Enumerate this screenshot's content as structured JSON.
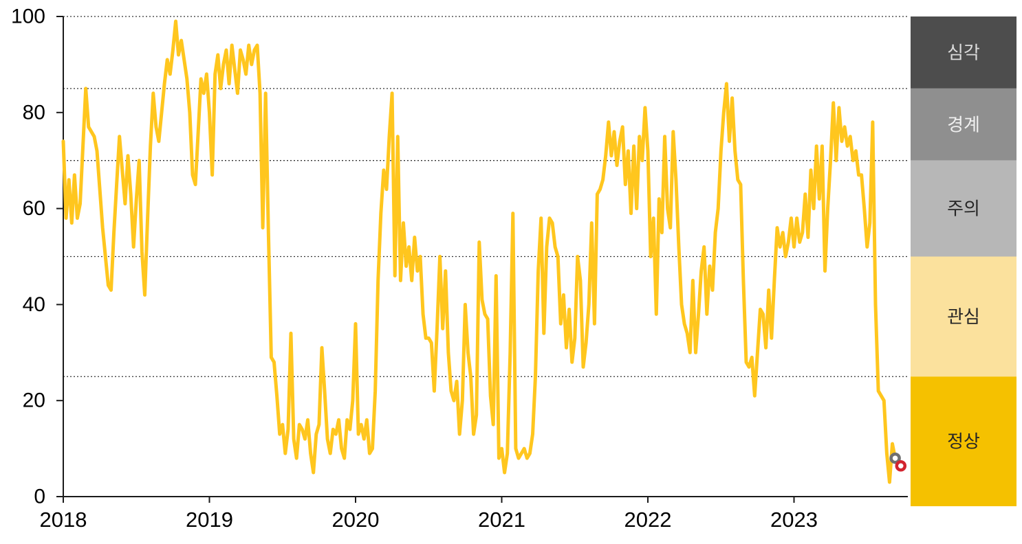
{
  "chart_data": {
    "type": "line",
    "title": "",
    "xlabel": "",
    "ylabel": "",
    "ylim": [
      0,
      100
    ],
    "y_ticks": [
      0,
      20,
      40,
      60,
      80,
      100
    ],
    "x_tick_labels": [
      "2018",
      "2019",
      "2020",
      "2021",
      "2022",
      "2023"
    ],
    "gridlines": [
      25,
      50,
      70,
      85,
      100
    ],
    "grid_style": "dotted",
    "legend_position": "right-band",
    "start_year": 2018,
    "points_per_year": 52,
    "series": [
      {
        "name": "stress-index",
        "color": "#FFC61E",
        "weekly_values": [
          74,
          58,
          66,
          57,
          67,
          58,
          61,
          73,
          85,
          77,
          76,
          75,
          72,
          64,
          56,
          50,
          44,
          43,
          55,
          65,
          75,
          68,
          61,
          71,
          63,
          52,
          62,
          70,
          51,
          42,
          58,
          73,
          84,
          77,
          74,
          80,
          86,
          91,
          88,
          93,
          99,
          92,
          95,
          91,
          87,
          80,
          67,
          65,
          76,
          87,
          84,
          88,
          80,
          67,
          88,
          92,
          85,
          90,
          93,
          86,
          94,
          89,
          84,
          93,
          91,
          88,
          94,
          90,
          93,
          94,
          84,
          56,
          84,
          55,
          29,
          28,
          21,
          13,
          15,
          9,
          14,
          34,
          12,
          8,
          15,
          14,
          12,
          16,
          9,
          5,
          13,
          15,
          31,
          22,
          12,
          9,
          14,
          13,
          16,
          10,
          8,
          16,
          14,
          20,
          36,
          13,
          15,
          12,
          16,
          9,
          10,
          22,
          45,
          59,
          68,
          64,
          75,
          84,
          46,
          75,
          45,
          57,
          48,
          52,
          45,
          54,
          47,
          50,
          38,
          33,
          33,
          32,
          22,
          35,
          50,
          35,
          47,
          30,
          22,
          20,
          24,
          13,
          20,
          40,
          30,
          25,
          13,
          17,
          53,
          41,
          38,
          37,
          21,
          15,
          46,
          8,
          10,
          5,
          9,
          30,
          59,
          10,
          8,
          9,
          10,
          8,
          9,
          13,
          25,
          47,
          58,
          34,
          52,
          58,
          57,
          52,
          50,
          36,
          42,
          31,
          39,
          28,
          33,
          50,
          45,
          27,
          32,
          40,
          57,
          36,
          63,
          64,
          66,
          71,
          78,
          71,
          76,
          69,
          74,
          77,
          65,
          72,
          59,
          73,
          60,
          75,
          70,
          81,
          72,
          50,
          58,
          38,
          62,
          55,
          75,
          60,
          56,
          76,
          66,
          52,
          40,
          36,
          34,
          30,
          45,
          30,
          38,
          47,
          52,
          38,
          48,
          43,
          55,
          60,
          72,
          80,
          86,
          74,
          83,
          72,
          66,
          65,
          45,
          28,
          27,
          29,
          21,
          30,
          39,
          38,
          31,
          43,
          33,
          45,
          56,
          52,
          55,
          50,
          53,
          58,
          52,
          58,
          53,
          55,
          63,
          54,
          68,
          60,
          73,
          62,
          73,
          47,
          60,
          70,
          82,
          70,
          81,
          74,
          77,
          73,
          75,
          70,
          72,
          67,
          67,
          60,
          52,
          57,
          78,
          40,
          22,
          21,
          20,
          9,
          3,
          11,
          8
        ]
      }
    ],
    "end_markers": [
      {
        "name": "latest-point-gray",
        "value": 8,
        "offset_weeks": 0,
        "ring_color": "#6F6F6F"
      },
      {
        "name": "latest-point-red",
        "value": 6.4,
        "offset_weeks": 2,
        "ring_color": "#D2232E"
      }
    ],
    "legend_bands": [
      {
        "label": "심각",
        "from": 85,
        "to": 100,
        "bg": "#4D4D4D",
        "text_color": "#DCDCDC"
      },
      {
        "label": "경계",
        "from": 70,
        "to": 85,
        "bg": "#8F8F8F",
        "text_color": "#F0F0F0"
      },
      {
        "label": "주의",
        "from": 50,
        "to": 70,
        "bg": "#B7B7B7",
        "text_color": "#262626"
      },
      {
        "label": "관심",
        "from": 25,
        "to": 50,
        "bg": "#FBE19D",
        "text_color": "#262626"
      },
      {
        "label": "정상",
        "from": 0,
        "to": 25,
        "bg": "#F5C100",
        "text_color": "#262626"
      }
    ],
    "axis_color": "#1A1A1A",
    "grid_color": "#333333",
    "tick_label_color": "#000000"
  }
}
